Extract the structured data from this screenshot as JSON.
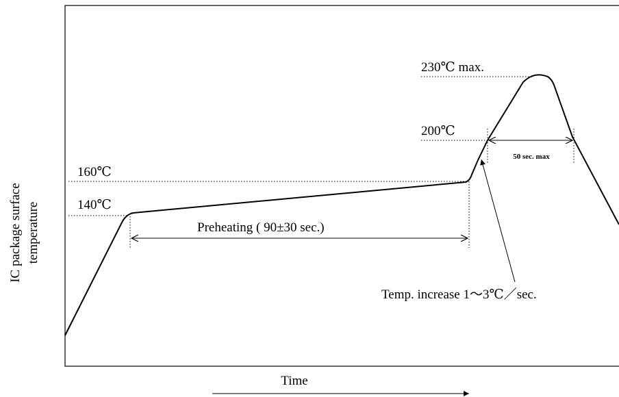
{
  "diagram": {
    "y_axis_label": [
      "IC package surface",
      "temperature"
    ],
    "x_axis_label": "Time",
    "levels": [
      "230℃  max.",
      "200℃",
      "160℃",
      "140℃"
    ],
    "preheating": "Preheating ( 90±30 sec.)",
    "peak_window": "50 sec. max",
    "ramp_note": "Temp. increase 1～3℃／sec."
  }
}
